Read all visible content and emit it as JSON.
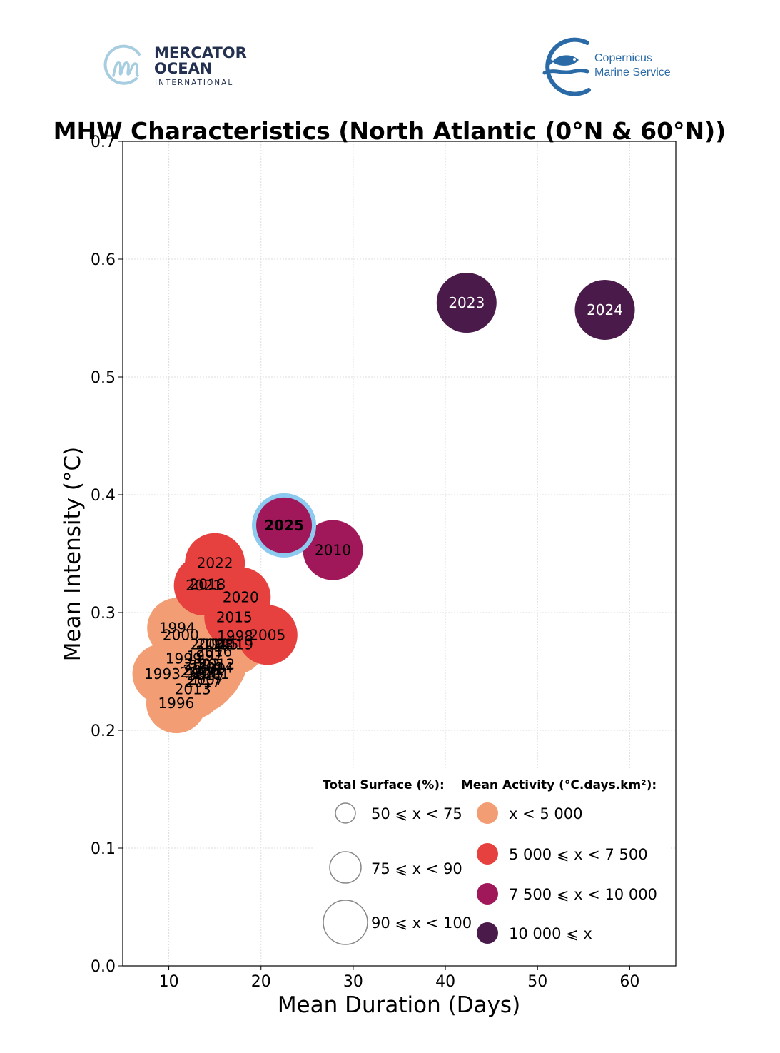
{
  "logos": {
    "left": {
      "line1": "MERCATOR",
      "line2": "OCEAN",
      "line3": "INTERNATIONAL",
      "icon": "mercator-m-circle-icon"
    },
    "right": {
      "line1": "Copernicus",
      "line2": "Marine Service",
      "icon": "fish-wave-icon"
    }
  },
  "colors": {
    "lt5000": "#f29d74",
    "5000_7500": "#e6403f",
    "7500_10000": "#a0185a",
    "ge10000": "#4a1a4b",
    "highlight_ring": "#8ccaf0",
    "logo_navy": "#23304f",
    "logo_lightblue": "#a7cde0",
    "copernicus_blue": "#2a6aa6"
  },
  "chart_data": {
    "type": "scatter",
    "title": "MHW Characteristics (North Atlantic (0°N & 60°N))",
    "xlabel": "Mean Duration (Days)",
    "ylabel": "Mean Intensity (°C)",
    "xlim": [
      5,
      65
    ],
    "ylim": [
      0.0,
      0.7
    ],
    "xticks": [
      10,
      20,
      30,
      40,
      50,
      60
    ],
    "yticks": [
      0.0,
      0.1,
      0.2,
      0.3,
      0.4,
      0.5,
      0.6,
      0.7
    ],
    "xtick_labels": [
      "10",
      "20",
      "30",
      "40",
      "50",
      "60"
    ],
    "ytick_labels": [
      "0.0",
      "0.1",
      "0.2",
      "0.3",
      "0.4",
      "0.5",
      "0.6",
      "0.7"
    ],
    "grid": true,
    "size_encoding": "Total Surface (%)",
    "color_encoding": "Mean Activity (°C.days.km²)",
    "points": [
      {
        "year": "1996",
        "x": 10.8,
        "y": 0.223,
        "surface_class": "90-100",
        "activity_class": "lt5000"
      },
      {
        "year": "1993",
        "x": 9.3,
        "y": 0.248,
        "surface_class": "90-100",
        "activity_class": "lt5000"
      },
      {
        "year": "2013",
        "x": 12.6,
        "y": 0.235,
        "surface_class": "90-100",
        "activity_class": "lt5000"
      },
      {
        "year": "1999",
        "x": 11.6,
        "y": 0.261,
        "surface_class": "90-100",
        "activity_class": "lt5000"
      },
      {
        "year": "2017",
        "x": 13.7,
        "y": 0.241,
        "surface_class": "90-100",
        "activity_class": "lt5000"
      },
      {
        "year": "2007",
        "x": 14.0,
        "y": 0.243,
        "surface_class": "90-100",
        "activity_class": "lt5000"
      },
      {
        "year": "2001",
        "x": 14.6,
        "y": 0.248,
        "surface_class": "90-100",
        "activity_class": "lt5000"
      },
      {
        "year": "2003",
        "x": 13.2,
        "y": 0.249,
        "surface_class": "90-100",
        "activity_class": "lt5000"
      },
      {
        "year": "2006",
        "x": 13.5,
        "y": 0.251,
        "surface_class": "90-100",
        "activity_class": "lt5000"
      },
      {
        "year": "2009",
        "x": 14.2,
        "y": 0.252,
        "surface_class": "90-100",
        "activity_class": "lt5000"
      },
      {
        "year": "2011",
        "x": 13.9,
        "y": 0.247,
        "surface_class": "90-100",
        "activity_class": "lt5000"
      },
      {
        "year": "2014",
        "x": 15.0,
        "y": 0.253,
        "surface_class": "90-100",
        "activity_class": "lt5000"
      },
      {
        "year": "2002",
        "x": 13.6,
        "y": 0.256,
        "surface_class": "90-100",
        "activity_class": "lt5000"
      },
      {
        "year": "2012",
        "x": 15.2,
        "y": 0.256,
        "surface_class": "90-100",
        "activity_class": "lt5000"
      },
      {
        "year": "1997",
        "x": 13.9,
        "y": 0.263,
        "surface_class": "90-100",
        "activity_class": "lt5000"
      },
      {
        "year": "2016",
        "x": 14.9,
        "y": 0.267,
        "surface_class": "90-100",
        "activity_class": "lt5000"
      },
      {
        "year": "2004",
        "x": 14.3,
        "y": 0.273,
        "surface_class": "90-100",
        "activity_class": "lt5000"
      },
      {
        "year": "2008",
        "x": 15.0,
        "y": 0.273,
        "surface_class": "90-100",
        "activity_class": "lt5000"
      },
      {
        "year": "1995",
        "x": 15.6,
        "y": 0.273,
        "surface_class": "90-100",
        "activity_class": "lt5000"
      },
      {
        "year": "2019",
        "x": 17.2,
        "y": 0.273,
        "surface_class": "90-100",
        "activity_class": "lt5000"
      },
      {
        "year": "2000",
        "x": 11.3,
        "y": 0.281,
        "surface_class": "90-100",
        "activity_class": "lt5000"
      },
      {
        "year": "1994",
        "x": 10.9,
        "y": 0.287,
        "surface_class": "90-100",
        "activity_class": "lt5000"
      },
      {
        "year": "1998",
        "x": 17.2,
        "y": 0.28,
        "surface_class": "90-100",
        "activity_class": "lt5000"
      },
      {
        "year": "2015",
        "x": 17.1,
        "y": 0.296,
        "surface_class": "90-100",
        "activity_class": "5000-7500"
      },
      {
        "year": "2005",
        "x": 20.7,
        "y": 0.281,
        "surface_class": "90-100",
        "activity_class": "5000-7500"
      },
      {
        "year": "2020",
        "x": 17.8,
        "y": 0.313,
        "surface_class": "90-100",
        "activity_class": "5000-7500"
      },
      {
        "year": "2021",
        "x": 13.8,
        "y": 0.323,
        "surface_class": "90-100",
        "activity_class": "5000-7500"
      },
      {
        "year": "2018",
        "x": 14.2,
        "y": 0.324,
        "surface_class": "90-100",
        "activity_class": "5000-7500"
      },
      {
        "year": "2022",
        "x": 15.0,
        "y": 0.342,
        "surface_class": "90-100",
        "activity_class": "5000-7500"
      },
      {
        "year": "2010",
        "x": 27.8,
        "y": 0.353,
        "surface_class": "90-100",
        "activity_class": "7500-10000"
      },
      {
        "year": "2025",
        "x": 22.5,
        "y": 0.374,
        "surface_class": "90-100",
        "activity_class": "7500-10000",
        "highlight": true
      },
      {
        "year": "2023",
        "x": 42.3,
        "y": 0.563,
        "surface_class": "90-100",
        "activity_class": "ge10000"
      },
      {
        "year": "2024",
        "x": 57.3,
        "y": 0.557,
        "surface_class": "90-100",
        "activity_class": "ge10000"
      }
    ],
    "legend": {
      "placement": "lower-right",
      "size_title": "Total Surface (%):",
      "size_entries": [
        {
          "label": "50 ⩽ x < 75",
          "class": "50-75"
        },
        {
          "label": "75 ⩽ x < 90",
          "class": "75-90"
        },
        {
          "label": "90 ⩽ x < 100",
          "class": "90-100"
        }
      ],
      "color_title": "Mean Activity (°C.days.km²):",
      "color_entries": [
        {
          "label": "x < 5 000",
          "class": "lt5000"
        },
        {
          "label": "5 000 ⩽ x < 7 500",
          "class": "5000-7500"
        },
        {
          "label": "7 500 ⩽ x < 10 000",
          "class": "7500-10000"
        },
        {
          "label": "10 000 ⩽ x",
          "class": "ge10000"
        }
      ]
    }
  }
}
